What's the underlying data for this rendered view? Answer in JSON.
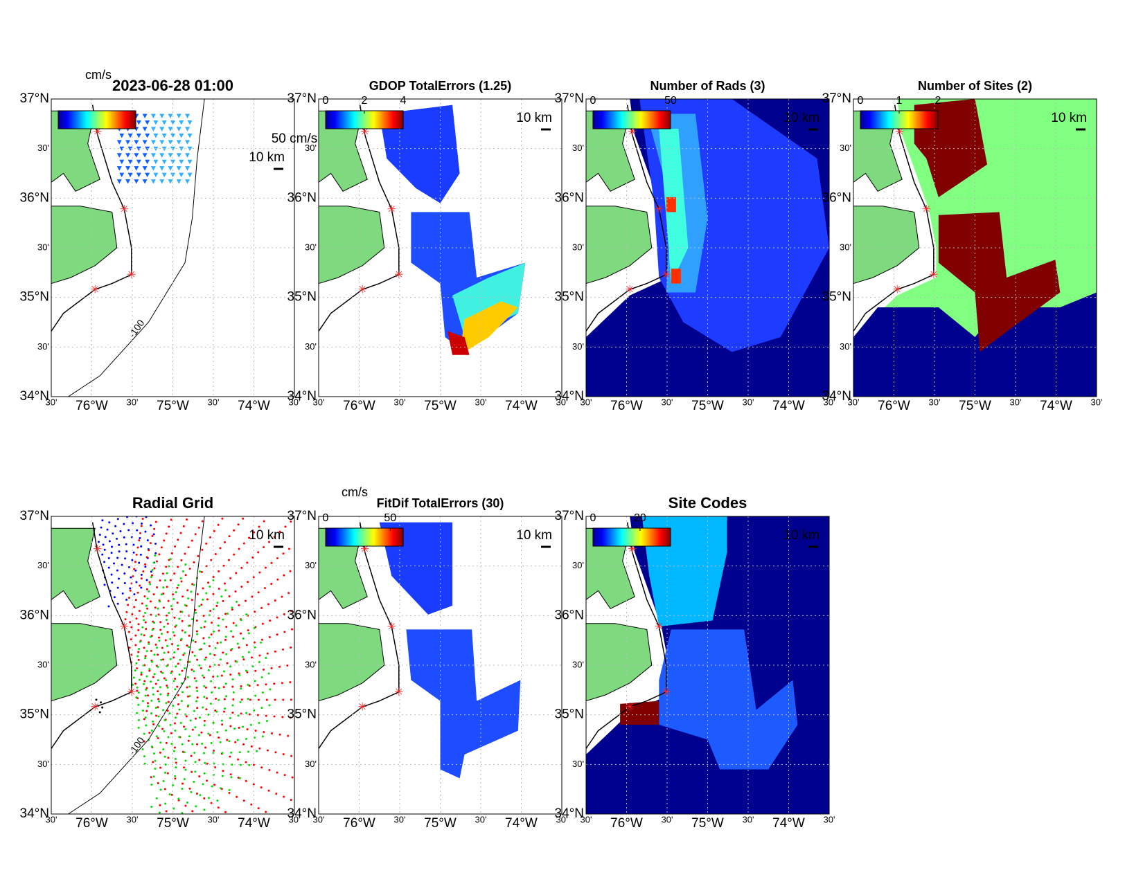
{
  "timestamp": "2023-06-28 01:00",
  "lat_ticks": [
    "37°N",
    "30'",
    "36°N",
    "30'",
    "35°N",
    "30'",
    "34°N"
  ],
  "lon_ticks": [
    "30'",
    "76°W",
    "30'",
    "75°W",
    "30'",
    "74°W",
    "30'"
  ],
  "contour_label": "-100",
  "panels": [
    {
      "title": "2023-06-28 01:00",
      "unit": "cm/s",
      "scale_label": "10 km",
      "vector_scale_label": "50 cm/s"
    },
    {
      "title": "GDOP TotalErrors (1.25)",
      "colorbar_ticks": [
        0,
        2,
        4
      ],
      "colorbar_lim": [
        0,
        4
      ],
      "scale_label": "10 km"
    },
    {
      "title": "Number of Rads (3)",
      "colorbar_ticks": [
        0,
        50
      ],
      "colorbar_lim": [
        0,
        50
      ],
      "scale_label": "10 km"
    },
    {
      "title": "Number of Sites (2)",
      "colorbar_ticks": [
        0,
        1,
        2
      ],
      "colorbar_lim": [
        0,
        2
      ],
      "scale_label": "10 km"
    },
    {
      "title": "Radial Grid",
      "scale_label": "10 km"
    },
    {
      "title": "FitDif TotalErrors (30)",
      "unit": "cm/s",
      "colorbar_ticks": [
        0,
        50
      ],
      "colorbar_lim": [
        0,
        60
      ],
      "scale_label": "10 km"
    },
    {
      "title": "Site Codes",
      "colorbar_ticks": [
        0,
        20
      ],
      "colorbar_lim": [
        0,
        33
      ],
      "scale_label": "10 km"
    }
  ]
}
